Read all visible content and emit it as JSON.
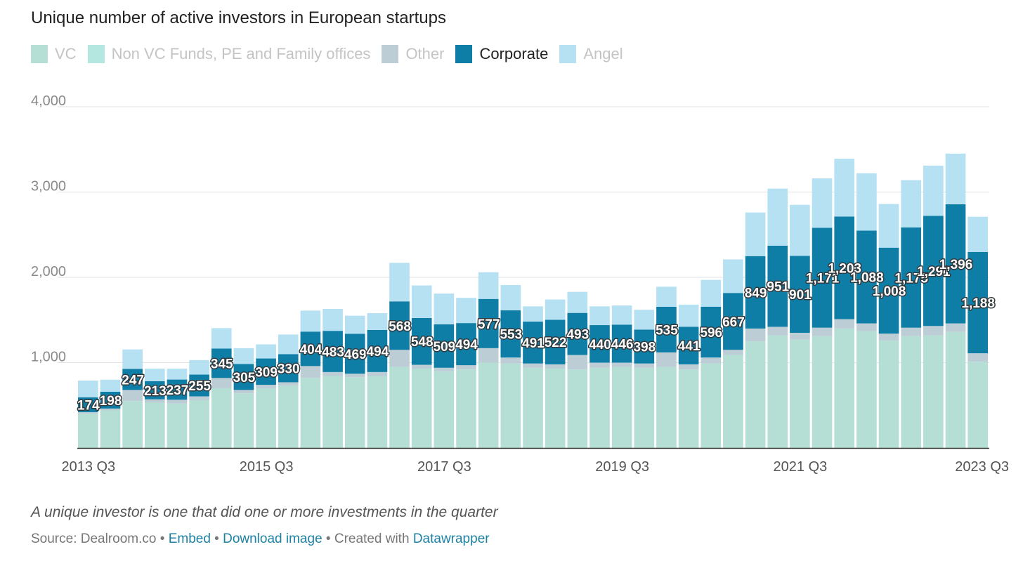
{
  "title": "Unique number of active investors in European startups",
  "legend": [
    {
      "name": "VC",
      "color": "#b5dfd4",
      "active": false
    },
    {
      "name": "Non VC Funds, PE and Family offices",
      "color": "#b4e7df",
      "active": false
    },
    {
      "name": "Other",
      "color": "#bccdd6",
      "active": false
    },
    {
      "name": "Corporate",
      "color": "#0f7ea6",
      "active": true
    },
    {
      "name": "Angel",
      "color": "#b6e1f2",
      "active": false
    }
  ],
  "note": "A unique investor is one that did one or more investments in the quarter",
  "source": {
    "prefix": "Source: Dealroom.co",
    "sep": " • ",
    "embed": "Embed",
    "download": "Download image",
    "created": "Created with",
    "datawrapper": "Datawrapper"
  },
  "chart_data": {
    "type": "bar",
    "stacked": true,
    "ylim": [
      0,
      4000
    ],
    "yticks": [
      1000,
      2000,
      3000,
      4000
    ],
    "ytick_labels": [
      "1,000",
      "2,000",
      "3,000",
      "4,000"
    ],
    "xtick_labels": [
      "2013 Q3",
      "2015 Q3",
      "2017 Q3",
      "2019 Q3",
      "2021 Q3",
      "2023 Q3"
    ],
    "xtick_indices": [
      0,
      8,
      16,
      24,
      32,
      40
    ],
    "categories": [
      "2013 Q3",
      "2013 Q4",
      "2014 Q1",
      "2014 Q2",
      "2014 Q3",
      "2014 Q4",
      "2015 Q1",
      "2015 Q2",
      "2015 Q3",
      "2015 Q4",
      "2016 Q1",
      "2016 Q2",
      "2016 Q3",
      "2016 Q4",
      "2017 Q1",
      "2017 Q2",
      "2017 Q3",
      "2017 Q4",
      "2018 Q1",
      "2018 Q2",
      "2018 Q3",
      "2018 Q4",
      "2019 Q1",
      "2019 Q2",
      "2019 Q3",
      "2019 Q4",
      "2020 Q1",
      "2020 Q2",
      "2020 Q3",
      "2020 Q4",
      "2021 Q1",
      "2021 Q2",
      "2021 Q3",
      "2021 Q4",
      "2022 Q1",
      "2022 Q2",
      "2022 Q3",
      "2022 Q4",
      "2023 Q1",
      "2023 Q2",
      "2023 Q3"
    ],
    "series": [
      {
        "name": "VC",
        "values": [
          400,
          440,
          550,
          530,
          520,
          560,
          700,
          640,
          700,
          730,
          820,
          840,
          830,
          840,
          950,
          930,
          900,
          920,
          1000,
          990,
          940,
          930,
          920,
          940,
          950,
          940,
          950,
          920,
          990,
          1090,
          1250,
          1320,
          1270,
          1310,
          1400,
          1370,
          1260,
          1310,
          1320,
          1360,
          1010
        ]
      },
      {
        "name": "Non VC Funds, PE and Family offices",
        "values": [
          0,
          0,
          0,
          0,
          0,
          0,
          0,
          0,
          0,
          0,
          0,
          0,
          0,
          0,
          0,
          0,
          0,
          0,
          0,
          0,
          0,
          0,
          0,
          0,
          0,
          0,
          0,
          0,
          0,
          0,
          0,
          0,
          0,
          0,
          0,
          0,
          0,
          0,
          0,
          0,
          0
        ]
      },
      {
        "name": "Other",
        "values": [
          20,
          22,
          130,
          40,
          45,
          45,
          120,
          40,
          40,
          40,
          140,
          50,
          40,
          50,
          200,
          45,
          40,
          50,
          170,
          70,
          50,
          50,
          170,
          60,
          50,
          50,
          170,
          60,
          70,
          60,
          150,
          100,
          80,
          100,
          110,
          90,
          80,
          100,
          110,
          100,
          100
        ]
      },
      {
        "name": "Corporate",
        "values": [
          174,
          198,
          247,
          213,
          237,
          255,
          345,
          305,
          309,
          330,
          404,
          483,
          469,
          494,
          568,
          548,
          509,
          494,
          577,
          553,
          491,
          522,
          493,
          440,
          446,
          398,
          535,
          441,
          596,
          667,
          849,
          951,
          901,
          1171,
          1203,
          1088,
          1008,
          1175,
          1291,
          1396,
          1188
        ]
      },
      {
        "name": "Angel",
        "values": [
          196,
          140,
          228,
          147,
          128,
          170,
          240,
          185,
          165,
          230,
          246,
          257,
          211,
          196,
          452,
          382,
          361,
          296,
          313,
          297,
          179,
          238,
          247,
          220,
          224,
          232,
          235,
          259,
          314,
          393,
          511,
          669,
          599,
          579,
          677,
          672,
          512,
          555,
          589,
          594,
          412
        ]
      }
    ],
    "data_labels_series": "Corporate",
    "data_labels": [
      "174",
      "198",
      "247",
      "213",
      "237",
      "255",
      "345",
      "305",
      "309",
      "330",
      "404",
      "483",
      "469",
      "494",
      "568",
      "548",
      "509",
      "494",
      "577",
      "553",
      "491",
      "522",
      "493",
      "440",
      "446",
      "398",
      "535",
      "441",
      "596",
      "667",
      "849",
      "951",
      "901",
      "1,171",
      "1,203",
      "1,088",
      "1,008",
      "1,175",
      "1,291",
      "1,396",
      "1,188"
    ]
  }
}
